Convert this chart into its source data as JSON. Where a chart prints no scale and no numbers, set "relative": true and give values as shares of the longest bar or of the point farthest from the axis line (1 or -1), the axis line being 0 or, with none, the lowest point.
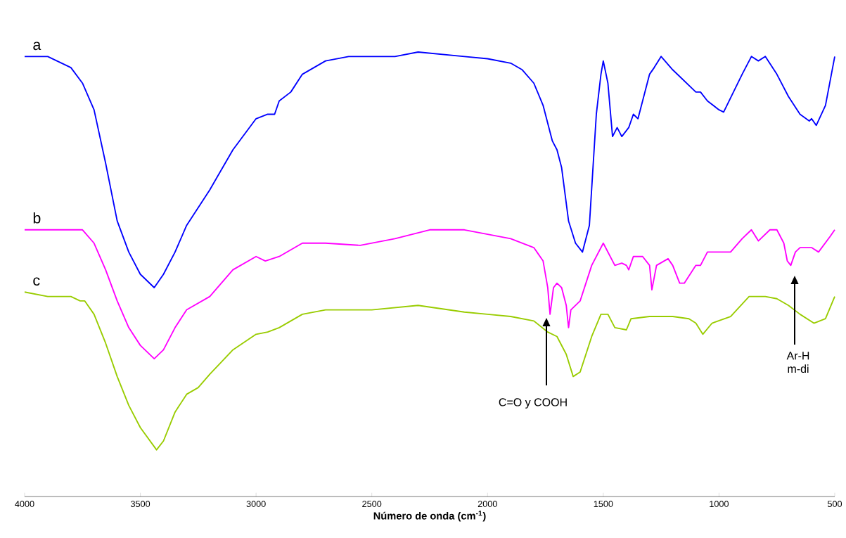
{
  "chart_data": {
    "type": "line",
    "relative": true,
    "xlabel": "Número de onda (cm$^{-1}$)",
    "xlim": [
      4000,
      500
    ],
    "xticks": [
      4000,
      3500,
      3000,
      2500,
      2000,
      1500,
      1000,
      500
    ],
    "marker": "none",
    "line_style": "solid",
    "series": [
      {
        "name": "a",
        "color": "#0000ff",
        "x": [
          4000,
          3900,
          3800,
          3750,
          3700,
          3650,
          3600,
          3550,
          3500,
          3440,
          3400,
          3350,
          3300,
          3200,
          3100,
          3000,
          2950,
          2920,
          2900,
          2850,
          2800,
          2700,
          2600,
          2400,
          2300,
          2100,
          2000,
          1900,
          1850,
          1800,
          1760,
          1720,
          1700,
          1680,
          1650,
          1620,
          1590,
          1560,
          1530,
          1510,
          1500,
          1480,
          1460,
          1440,
          1420,
          1390,
          1370,
          1350,
          1300,
          1280,
          1250,
          1200,
          1100,
          1080,
          1050,
          1000,
          980,
          900,
          860,
          830,
          800,
          750,
          700,
          650,
          610,
          600,
          580,
          540,
          500
        ],
        "values": [
          0.99,
          0.99,
          0.965,
          0.93,
          0.87,
          0.75,
          0.62,
          0.55,
          0.5,
          0.47,
          0.5,
          0.55,
          0.61,
          0.69,
          0.78,
          0.85,
          0.86,
          0.86,
          0.89,
          0.91,
          0.95,
          0.98,
          0.99,
          0.99,
          1.0,
          0.99,
          0.985,
          0.975,
          0.96,
          0.93,
          0.88,
          0.8,
          0.78,
          0.74,
          0.62,
          0.57,
          0.55,
          0.61,
          0.86,
          0.95,
          0.98,
          0.93,
          0.81,
          0.83,
          0.81,
          0.83,
          0.86,
          0.85,
          0.95,
          0.965,
          0.99,
          0.96,
          0.91,
          0.91,
          0.89,
          0.87,
          0.865,
          0.95,
          0.99,
          0.98,
          0.99,
          0.95,
          0.9,
          0.86,
          0.845,
          0.85,
          0.835,
          0.88,
          0.99
        ]
      },
      {
        "name": "b",
        "color": "#ff00ff",
        "x": [
          4000,
          3750,
          3700,
          3650,
          3600,
          3550,
          3500,
          3440,
          3400,
          3350,
          3300,
          3200,
          3100,
          3000,
          2960,
          2900,
          2800,
          2700,
          2550,
          2400,
          2250,
          2100,
          2000,
          1900,
          1800,
          1760,
          1740,
          1730,
          1715,
          1700,
          1680,
          1660,
          1650,
          1640,
          1600,
          1550,
          1500,
          1450,
          1420,
          1400,
          1390,
          1370,
          1330,
          1300,
          1290,
          1270,
          1220,
          1200,
          1170,
          1150,
          1100,
          1080,
          1050,
          1000,
          950,
          900,
          860,
          830,
          780,
          750,
          720,
          705,
          690,
          670,
          650,
          600,
          570,
          520,
          500
        ],
        "values": [
          0.6,
          0.6,
          0.57,
          0.51,
          0.44,
          0.38,
          0.34,
          0.31,
          0.33,
          0.38,
          0.42,
          0.45,
          0.51,
          0.54,
          0.53,
          0.54,
          0.57,
          0.57,
          0.565,
          0.58,
          0.6,
          0.6,
          0.59,
          0.58,
          0.56,
          0.53,
          0.47,
          0.41,
          0.47,
          0.48,
          0.47,
          0.43,
          0.38,
          0.42,
          0.44,
          0.52,
          0.57,
          0.52,
          0.525,
          0.52,
          0.51,
          0.54,
          0.54,
          0.52,
          0.465,
          0.52,
          0.535,
          0.52,
          0.48,
          0.48,
          0.52,
          0.52,
          0.55,
          0.55,
          0.55,
          0.58,
          0.6,
          0.575,
          0.6,
          0.6,
          0.57,
          0.53,
          0.52,
          0.55,
          0.56,
          0.56,
          0.55,
          0.585,
          0.6
        ]
      },
      {
        "name": "c",
        "color": "#99cc00",
        "x": [
          4000,
          3900,
          3800,
          3760,
          3740,
          3700,
          3650,
          3600,
          3550,
          3500,
          3430,
          3400,
          3350,
          3300,
          3250,
          3200,
          3100,
          3000,
          2950,
          2900,
          2800,
          2700,
          2500,
          2300,
          2100,
          2000,
          1900,
          1800,
          1740,
          1700,
          1660,
          1630,
          1600,
          1550,
          1510,
          1480,
          1450,
          1400,
          1380,
          1300,
          1200,
          1130,
          1100,
          1070,
          1030,
          950,
          870,
          800,
          750,
          700,
          650,
          590,
          540,
          500
        ],
        "values": [
          0.46,
          0.45,
          0.45,
          0.44,
          0.44,
          0.41,
          0.345,
          0.27,
          0.205,
          0.155,
          0.105,
          0.125,
          0.19,
          0.23,
          0.245,
          0.275,
          0.33,
          0.365,
          0.37,
          0.38,
          0.41,
          0.42,
          0.42,
          0.43,
          0.415,
          0.41,
          0.405,
          0.395,
          0.37,
          0.36,
          0.32,
          0.27,
          0.28,
          0.36,
          0.41,
          0.41,
          0.38,
          0.375,
          0.4,
          0.405,
          0.405,
          0.4,
          0.39,
          0.365,
          0.39,
          0.405,
          0.45,
          0.45,
          0.445,
          0.43,
          0.41,
          0.39,
          0.4,
          0.45
        ]
      }
    ],
    "annotations": [
      "C=O y COOH",
      "Ar-H m-di"
    ]
  }
}
